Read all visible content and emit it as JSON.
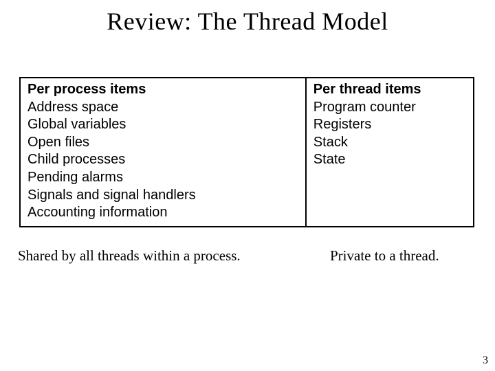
{
  "title": "Review: The Thread Model",
  "table": {
    "left_header": "Per process items",
    "right_header": "Per thread items",
    "left_items": [
      "Address space",
      "Global variables",
      "Open files",
      "Child processes",
      "Pending alarms",
      "Signals and signal handlers",
      "Accounting information"
    ],
    "right_items": [
      "Program counter",
      "Registers",
      "Stack",
      "State"
    ]
  },
  "caption_left": "Shared by all threads within a process.",
  "caption_right": "Private to a thread.",
  "page_number": "3",
  "colors": {
    "background": "#ffffff",
    "text": "#000000",
    "border": "#000000"
  },
  "fonts": {
    "title_family": "Times New Roman",
    "title_size_pt": 28,
    "table_family": "Arial",
    "table_size_pt": 15,
    "caption_family": "Times New Roman",
    "caption_size_pt": 16
  }
}
